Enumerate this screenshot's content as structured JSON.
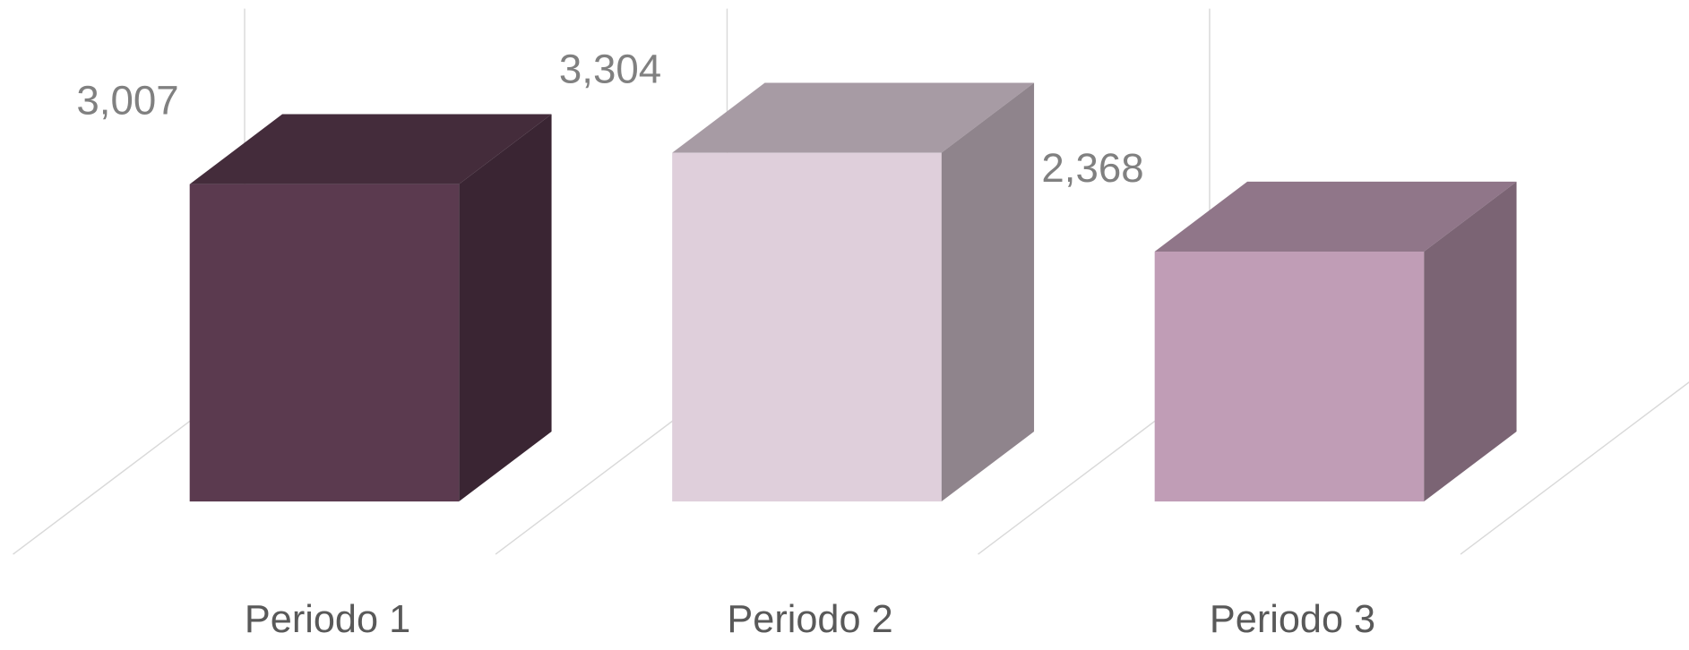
{
  "chart_data": {
    "type": "bar3d",
    "categories": [
      "Periodo 1",
      "Periodo 2",
      "Periodo 3"
    ],
    "values": [
      3007,
      3304,
      2368
    ],
    "value_labels": [
      "3,007",
      "3,304",
      "2,368"
    ],
    "colors": [
      "#5b3a4f",
      "#dfcfdb",
      "#c09db6"
    ]
  }
}
